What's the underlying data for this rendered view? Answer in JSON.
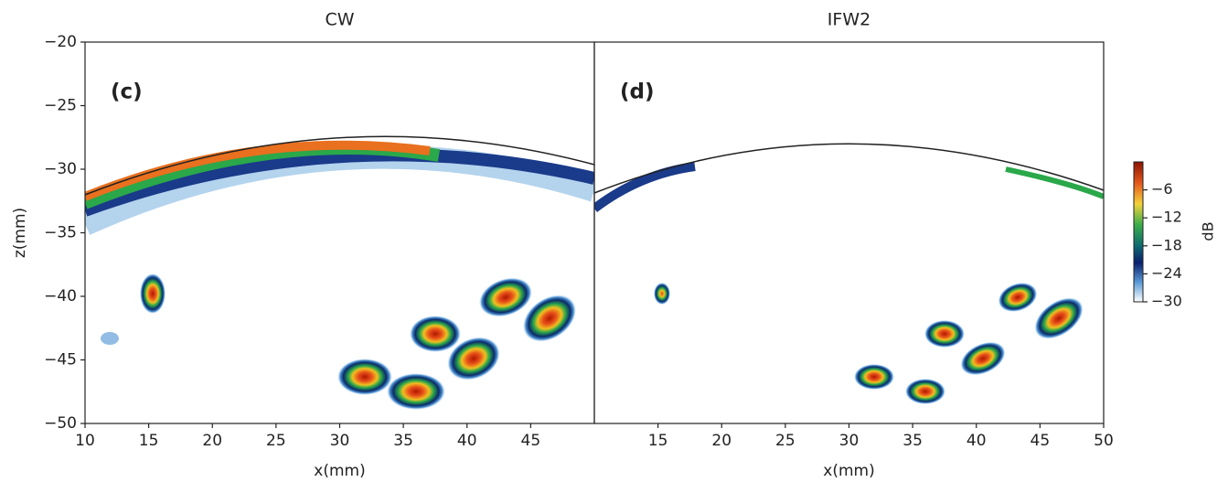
{
  "chart_data": [
    {
      "type": "heatmap",
      "title": "CW",
      "annotation": "(c)",
      "xlabel": "x(mm)",
      "ylabel": "z(mm)",
      "xlim": [
        10,
        50
      ],
      "xticks": [
        10,
        15,
        20,
        25,
        30,
        35,
        40,
        45
      ],
      "ylim": [
        -50,
        -20
      ],
      "yticks": [
        {
          "value": -50,
          "label": "−50"
        },
        {
          "value": -45,
          "label": "−45"
        },
        {
          "value": -40,
          "label": "−40"
        },
        {
          "value": -35,
          "label": "−35"
        },
        {
          "value": -30,
          "label": "−30"
        },
        {
          "value": -25,
          "label": "−25"
        },
        {
          "value": -20,
          "label": "−20"
        }
      ]
    },
    {
      "type": "heatmap",
      "title": "IFW2",
      "annotation": "(d)",
      "xlabel": "x(mm)",
      "xlim": [
        10,
        50
      ],
      "xticks": [
        15,
        20,
        25,
        30,
        35,
        40,
        45,
        50
      ],
      "ylim": [
        -50,
        -20
      ],
      "colorbar": {
        "label": "dB",
        "lim": [
          -30,
          0
        ],
        "ticks": [
          {
            "value": -6,
            "label": "−6"
          },
          {
            "value": -12,
            "label": "−12"
          },
          {
            "value": -18,
            "label": "−18"
          },
          {
            "value": -24,
            "label": "−24"
          },
          {
            "value": -30,
            "label": "−30"
          }
        ]
      }
    }
  ]
}
